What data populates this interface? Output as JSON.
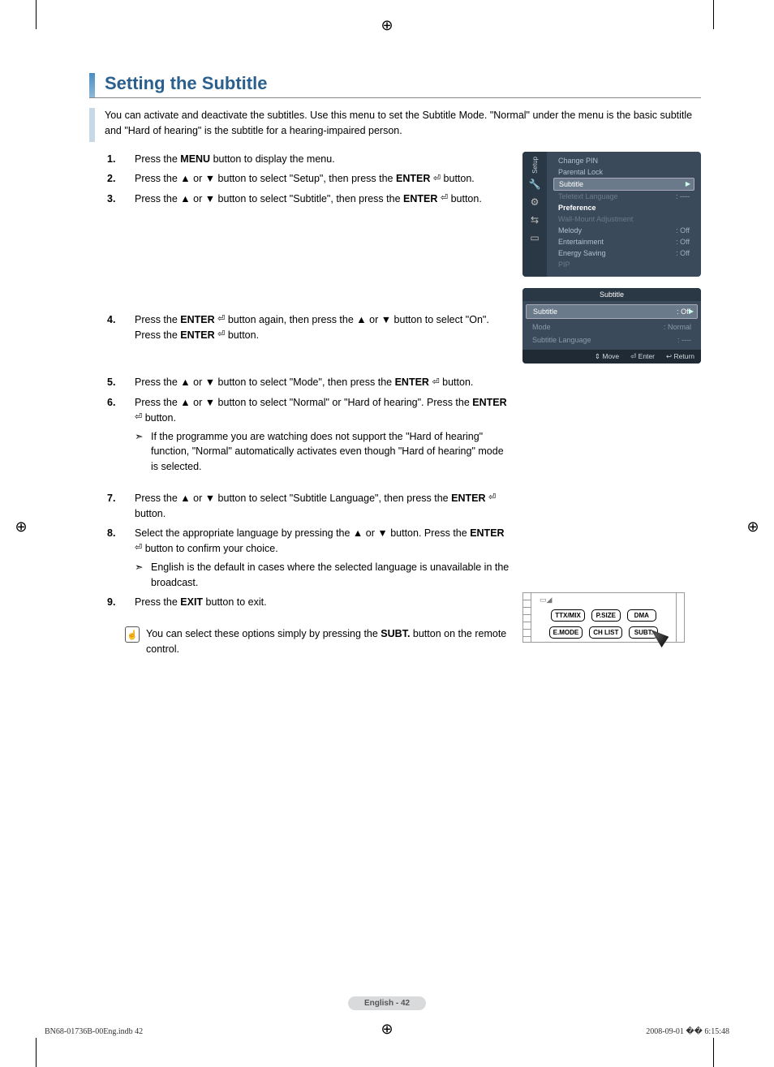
{
  "section": {
    "title": "Setting the Subtitle",
    "intro": "You can activate and deactivate the subtitles. Use this menu to set the Subtitle Mode. \"Normal\" under the menu is the basic subtitle and \"Hard of hearing\" is the subtitle for a hearing-impaired person.",
    "title_color": "#2a5f8e",
    "bar_gradient_top": "#4a8ec2",
    "bar_gradient_bottom": "#8db8d8"
  },
  "steps": {
    "s1": "Press the <b>MENU</b> button to display the menu.",
    "s2": "Press the ▲ or ▼ button to select \"Setup\", then press the <b>ENTER</b> <span class='enter-icon'>⏎</span> button.",
    "s3": "Press the ▲ or ▼ button to select \"Subtitle\", then press the <b>ENTER</b> <span class='enter-icon'>⏎</span> button.",
    "s4": "Press the <b>ENTER</b> <span class='enter-icon'>⏎</span> button again, then press the ▲ or ▼ button to select \"On\". Press the <b>ENTER</b> <span class='enter-icon'>⏎</span> button.",
    "s5": "Press the ▲ or ▼ button to select \"Mode\", then press the <b>ENTER</b> <span class='enter-icon'>⏎</span> button.",
    "s6": "Press the ▲ or ▼ button to select \"Normal\" or \"Hard of hearing\". Press the <b>ENTER</b> <span class='enter-icon'>⏎</span> button.",
    "s6_note": "If the programme you are watching does not support the \"Hard of hearing\" function, \"Normal\" automatically activates even though \"Hard of hearing\" mode is selected.",
    "s7": "Press the ▲ or ▼ button to select \"Subtitle Language\", then press the <b>ENTER</b> <span class='enter-icon'>⏎</span> button.",
    "s8": "Select the appropriate language by pressing the ▲ or ▼ button. Press the <b>ENTER</b> <span class='enter-icon'>⏎</span> button to confirm your choice.",
    "s8_note": "English is the default in cases where the selected language is unavailable in the broadcast.",
    "s9": "Press the <b>EXIT</b> button to exit.",
    "tip": "You can select these options simply by pressing the <b>SUBT.</b> button on the remote control."
  },
  "osd_setup": {
    "side_label": "Setup",
    "rows": [
      {
        "label": "Change PIN",
        "val": "",
        "state": "normal"
      },
      {
        "label": "Parental Lock",
        "val": "",
        "state": "normal"
      },
      {
        "label": "Subtitle",
        "val": "",
        "state": "hl"
      },
      {
        "label": "Teletext Language",
        "val": ": ----",
        "state": "dim"
      },
      {
        "label": "Preference",
        "val": "",
        "state": "bold"
      },
      {
        "label": "Wall-Mount Adjustment",
        "val": "",
        "state": "dim"
      },
      {
        "label": "Melody",
        "val": ": Off",
        "state": "normal"
      },
      {
        "label": "Entertainment",
        "val": ": Off",
        "state": "normal"
      },
      {
        "label": "Energy Saving",
        "val": ": Off",
        "state": "normal"
      },
      {
        "label": "PIP",
        "val": "",
        "state": "dim"
      }
    ],
    "background": "#3a4a5a",
    "side_background": "#2a3744",
    "highlight_background": "#6b7a8a"
  },
  "osd_subtitle": {
    "title": "Subtitle",
    "rows": [
      {
        "label": "Subtitle",
        "val": ": Off",
        "state": "hl"
      },
      {
        "label": "Mode",
        "val": ": Normal",
        "state": "dim"
      },
      {
        "label": "Subtitle Language",
        "val": ": ----",
        "state": "dim"
      }
    ],
    "footer": {
      "move": "Move",
      "enter": "Enter",
      "return": "Return"
    }
  },
  "remote": {
    "row1": [
      "TTX/MIX",
      "P.SIZE",
      "DMA"
    ],
    "row2": [
      "E.MODE",
      "CH LIST",
      "SUBT."
    ]
  },
  "page_footer": {
    "pill": "English - 42",
    "doc_ref": "BN68-01736B-00Eng.indb   42",
    "timestamp": "2008-09-01   �� 6:15:48"
  },
  "glyphs": {
    "up": "▲",
    "down": "▼",
    "enter": "⏎",
    "right_tri": "▶",
    "updown": "⇕",
    "return": "↩"
  }
}
